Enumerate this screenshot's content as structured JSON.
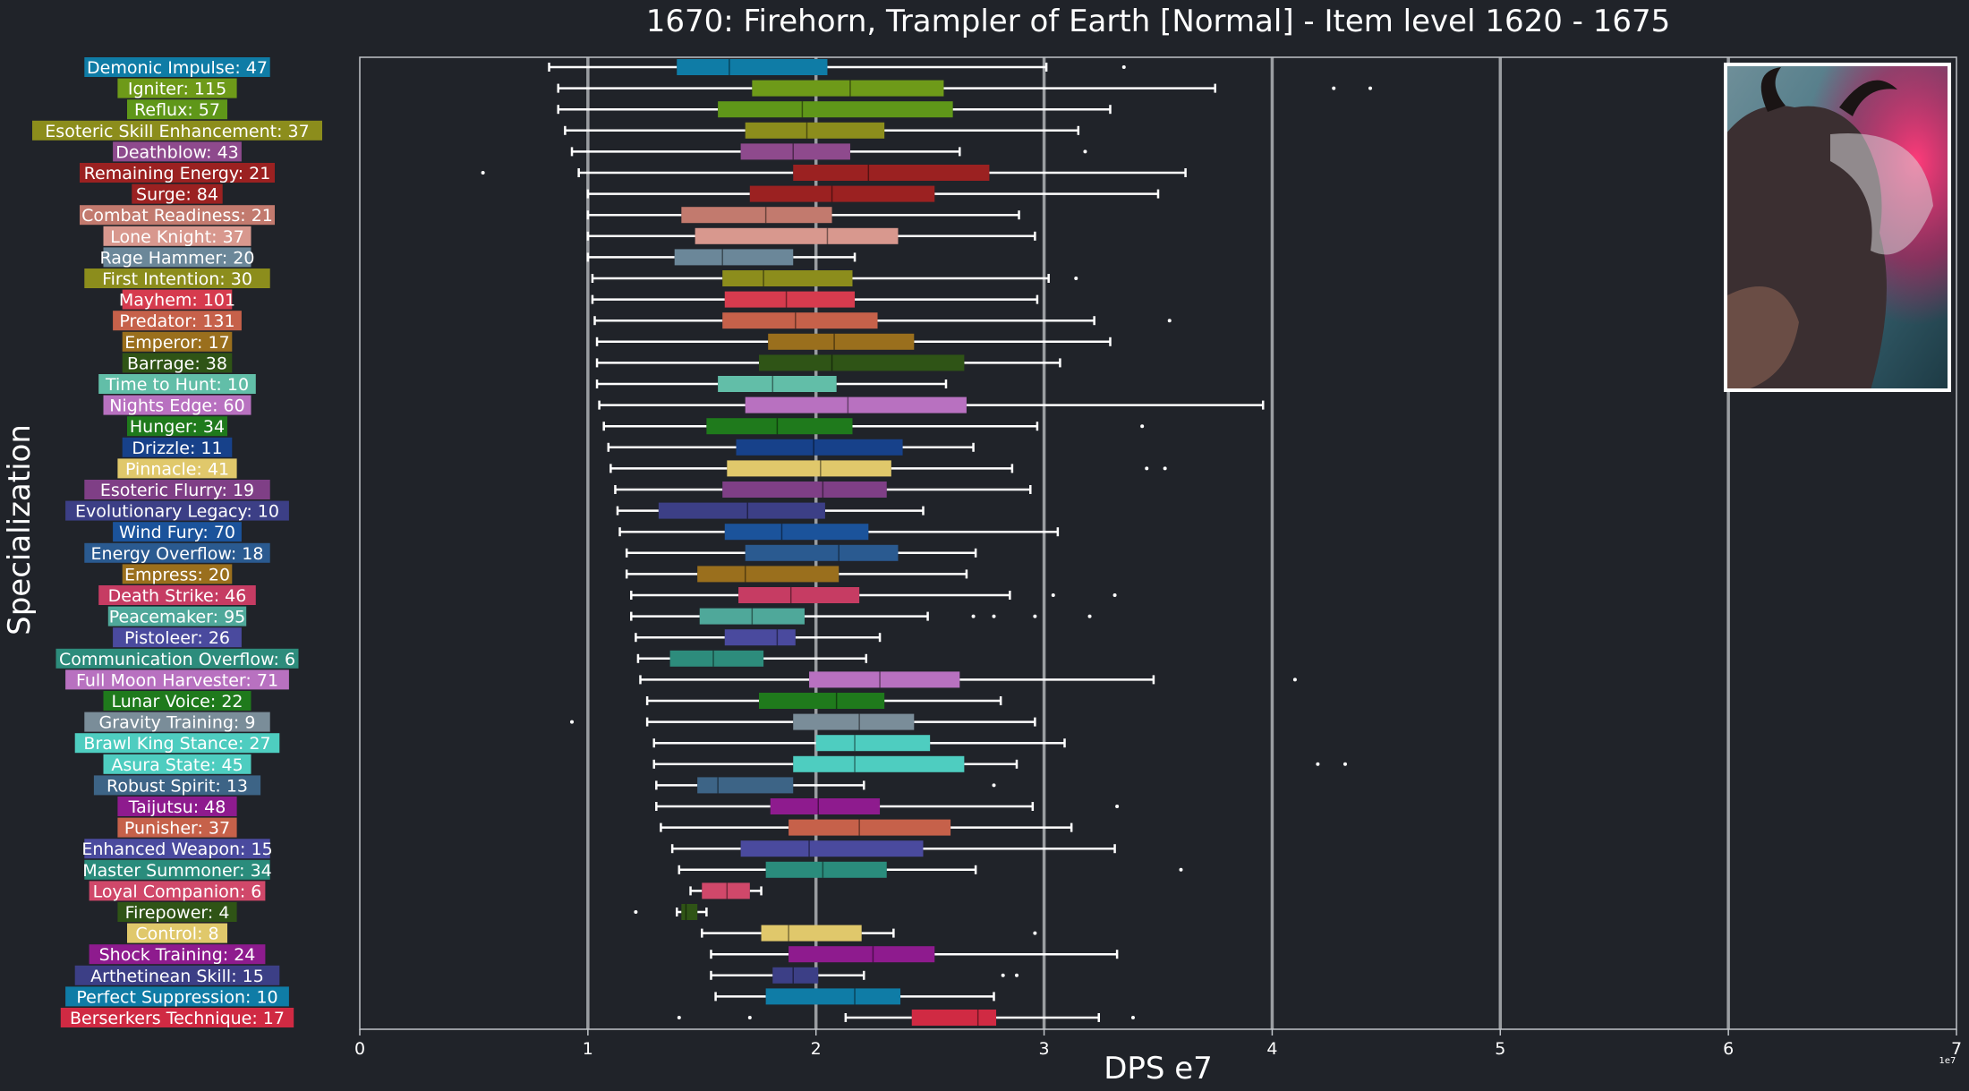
{
  "chart_data": {
    "type": "boxplot",
    "title": "1670: Firehorn, Trampler of Earth [Normal] - Item level 1620 - 1675",
    "xlabel": "DPS e7",
    "ylabel": "Specialization",
    "x_multiplier": "1e7",
    "xlim": [
      0,
      7
    ],
    "xticks": [
      "0",
      "1",
      "2",
      "3",
      "4",
      "5",
      "6",
      "7"
    ],
    "grid": "vertical major lines",
    "series": [
      {
        "label": "Demonic Impulse: 47",
        "color": "#0f7ca6",
        "whislo": 0.83,
        "q1": 1.39,
        "median": 1.62,
        "q3": 2.05,
        "whishi": 3.01,
        "fliers": [
          3.35
        ]
      },
      {
        "label": "Igniter: 115",
        "color": "#6e9a19",
        "whislo": 0.87,
        "q1": 1.72,
        "median": 2.15,
        "q3": 2.56,
        "whishi": 3.75,
        "fliers": [
          4.27,
          4.43
        ]
      },
      {
        "label": "Reflux: 57",
        "color": "#5f9719",
        "whislo": 0.87,
        "q1": 1.57,
        "median": 1.94,
        "q3": 2.6,
        "whishi": 3.29,
        "fliers": []
      },
      {
        "label": "Esoteric Skill Enhancement: 37",
        "color": "#8c8d1c",
        "whislo": 0.9,
        "q1": 1.69,
        "median": 1.96,
        "q3": 2.3,
        "whishi": 3.15,
        "fliers": []
      },
      {
        "label": "Deathblow: 43",
        "color": "#8e4a8d",
        "whislo": 0.93,
        "q1": 1.67,
        "median": 1.9,
        "q3": 2.15,
        "whishi": 2.63,
        "fliers": [
          3.18
        ]
      },
      {
        "label": "Remaining Energy: 21",
        "color": "#9b2121",
        "whislo": 0.96,
        "q1": 1.9,
        "median": 2.23,
        "q3": 2.76,
        "whishi": 3.62,
        "fliers": [
          0.54
        ]
      },
      {
        "label": "Surge: 84",
        "color": "#9b2121",
        "whislo": 1.0,
        "q1": 1.71,
        "median": 2.07,
        "q3": 2.52,
        "whishi": 3.5,
        "fliers": []
      },
      {
        "label": "Combat Readiness: 21",
        "color": "#c27a6e",
        "whislo": 1.0,
        "q1": 1.41,
        "median": 1.78,
        "q3": 2.07,
        "whishi": 2.89,
        "fliers": []
      },
      {
        "label": "Lone Knight: 37",
        "color": "#d8988e",
        "whislo": 1.0,
        "q1": 1.47,
        "median": 2.05,
        "q3": 2.36,
        "whishi": 2.96,
        "fliers": []
      },
      {
        "label": "Rage Hammer: 20",
        "color": "#6b8799",
        "whislo": 1.0,
        "q1": 1.38,
        "median": 1.59,
        "q3": 1.9,
        "whishi": 2.17,
        "fliers": []
      },
      {
        "label": "First Intention: 30",
        "color": "#8c8d1c",
        "whislo": 1.02,
        "q1": 1.59,
        "median": 1.77,
        "q3": 2.16,
        "whishi": 3.02,
        "fliers": [
          3.14
        ]
      },
      {
        "label": "Mayhem: 101",
        "color": "#d63b4e",
        "whislo": 1.02,
        "q1": 1.6,
        "median": 1.87,
        "q3": 2.17,
        "whishi": 2.97,
        "fliers": []
      },
      {
        "label": "Predator: 131",
        "color": "#c6614a",
        "whislo": 1.03,
        "q1": 1.59,
        "median": 1.91,
        "q3": 2.27,
        "whishi": 3.22,
        "fliers": [
          3.55
        ]
      },
      {
        "label": "Emperor: 17",
        "color": "#9a6f1d",
        "whislo": 1.04,
        "q1": 1.79,
        "median": 2.08,
        "q3": 2.43,
        "whishi": 3.29,
        "fliers": []
      },
      {
        "label": "Barrage: 38",
        "color": "#2f5416",
        "whislo": 1.04,
        "q1": 1.75,
        "median": 2.07,
        "q3": 2.65,
        "whishi": 3.07,
        "fliers": []
      },
      {
        "label": "Time to Hunt: 10",
        "color": "#62bea8",
        "whislo": 1.04,
        "q1": 1.57,
        "median": 1.81,
        "q3": 2.09,
        "whishi": 2.57,
        "fliers": []
      },
      {
        "label": "Nights Edge: 60",
        "color": "#b871c0",
        "whislo": 1.05,
        "q1": 1.69,
        "median": 2.14,
        "q3": 2.66,
        "whishi": 3.96,
        "fliers": []
      },
      {
        "label": "Hunger: 34",
        "color": "#1f7a1c",
        "whislo": 1.07,
        "q1": 1.52,
        "median": 1.83,
        "q3": 2.16,
        "whishi": 2.97,
        "fliers": [
          3.43
        ]
      },
      {
        "label": "Drizzle: 11",
        "color": "#17418a",
        "whislo": 1.09,
        "q1": 1.65,
        "median": 1.99,
        "q3": 2.38,
        "whishi": 2.69,
        "fliers": []
      },
      {
        "label": "Pinnacle: 41",
        "color": "#e0c86b",
        "whislo": 1.1,
        "q1": 1.61,
        "median": 2.02,
        "q3": 2.33,
        "whishi": 2.86,
        "fliers": [
          3.45,
          3.53
        ]
      },
      {
        "label": "Esoteric Flurry: 19",
        "color": "#7f3f86",
        "whislo": 1.12,
        "q1": 1.59,
        "median": 2.03,
        "q3": 2.31,
        "whishi": 2.94,
        "fliers": []
      },
      {
        "label": "Evolutionary Legacy: 10",
        "color": "#3c3f86",
        "whislo": 1.13,
        "q1": 1.31,
        "median": 1.7,
        "q3": 2.04,
        "whishi": 2.47,
        "fliers": []
      },
      {
        "label": "Wind Fury: 70",
        "color": "#1b539b",
        "whislo": 1.14,
        "q1": 1.6,
        "median": 1.85,
        "q3": 2.23,
        "whishi": 3.06,
        "fliers": []
      },
      {
        "label": "Energy Overflow: 18",
        "color": "#2a5a90",
        "whislo": 1.17,
        "q1": 1.69,
        "median": 2.1,
        "q3": 2.36,
        "whishi": 2.7,
        "fliers": []
      },
      {
        "label": "Empress: 20",
        "color": "#9a6f1d",
        "whislo": 1.17,
        "q1": 1.48,
        "median": 1.69,
        "q3": 2.1,
        "whishi": 2.66,
        "fliers": []
      },
      {
        "label": "Death Strike: 46",
        "color": "#c63c63",
        "whislo": 1.19,
        "q1": 1.66,
        "median": 1.89,
        "q3": 2.19,
        "whishi": 2.85,
        "fliers": [
          3.04,
          3.31
        ]
      },
      {
        "label": "Peacemaker: 95",
        "color": "#4fa89a",
        "whislo": 1.19,
        "q1": 1.49,
        "median": 1.72,
        "q3": 1.95,
        "whishi": 2.49,
        "fliers": [
          2.69,
          2.78,
          2.96,
          3.2
        ]
      },
      {
        "label": "Pistoleer: 26",
        "color": "#4a4a9e",
        "whislo": 1.21,
        "q1": 1.6,
        "median": 1.83,
        "q3": 1.91,
        "whishi": 2.28,
        "fliers": []
      },
      {
        "label": "Communication Overflow: 6",
        "color": "#2d8c7c",
        "whislo": 1.22,
        "q1": 1.36,
        "median": 1.55,
        "q3": 1.77,
        "whishi": 2.22,
        "fliers": []
      },
      {
        "label": "Full Moon Harvester: 71",
        "color": "#b871c0",
        "whislo": 1.23,
        "q1": 1.97,
        "median": 2.28,
        "q3": 2.63,
        "whishi": 3.48,
        "fliers": [
          4.1
        ]
      },
      {
        "label": "Lunar Voice: 22",
        "color": "#1f7a1c",
        "whislo": 1.26,
        "q1": 1.75,
        "median": 2.09,
        "q3": 2.3,
        "whishi": 2.81,
        "fliers": []
      },
      {
        "label": "Gravity Training: 9",
        "color": "#7a8d99",
        "whislo": 1.26,
        "q1": 1.9,
        "median": 2.19,
        "q3": 2.43,
        "whishi": 2.96,
        "fliers": [
          0.93
        ]
      },
      {
        "label": "Brawl King Stance: 27",
        "color": "#4ecdc0",
        "whislo": 1.29,
        "q1": 2.0,
        "median": 2.17,
        "q3": 2.5,
        "whishi": 3.09,
        "fliers": []
      },
      {
        "label": "Asura State: 45",
        "color": "#4ecdc0",
        "whislo": 1.29,
        "q1": 1.9,
        "median": 2.17,
        "q3": 2.65,
        "whishi": 2.88,
        "fliers": [
          4.2,
          4.32
        ]
      },
      {
        "label": "Robust Spirit: 13",
        "color": "#3d6486",
        "whislo": 1.3,
        "q1": 1.48,
        "median": 1.57,
        "q3": 1.9,
        "whishi": 2.21,
        "fliers": [
          2.78
        ]
      },
      {
        "label": "Taijutsu: 48",
        "color": "#8e1b8e",
        "whislo": 1.3,
        "q1": 1.8,
        "median": 2.01,
        "q3": 2.28,
        "whishi": 2.95,
        "fliers": [
          3.32
        ]
      },
      {
        "label": "Punisher: 37",
        "color": "#c6614a",
        "whislo": 1.32,
        "q1": 1.88,
        "median": 2.19,
        "q3": 2.59,
        "whishi": 3.12,
        "fliers": []
      },
      {
        "label": "Enhanced Weapon: 15",
        "color": "#4a4a9e",
        "whislo": 1.37,
        "q1": 1.67,
        "median": 1.97,
        "q3": 2.47,
        "whishi": 3.31,
        "fliers": []
      },
      {
        "label": "Master Summoner: 34",
        "color": "#2a8c7c",
        "whislo": 1.4,
        "q1": 1.78,
        "median": 2.03,
        "q3": 2.31,
        "whishi": 2.7,
        "fliers": [
          3.6
        ]
      },
      {
        "label": "Loyal Companion: 6",
        "color": "#d0486a",
        "whislo": 1.45,
        "q1": 1.5,
        "median": 1.61,
        "q3": 1.71,
        "whishi": 1.76,
        "fliers": []
      },
      {
        "label": "Firepower: 4",
        "color": "#2f5416",
        "whislo": 1.39,
        "q1": 1.41,
        "median": 1.43,
        "q3": 1.48,
        "whishi": 1.52,
        "fliers": [
          1.21
        ]
      },
      {
        "label": "Control: 8",
        "color": "#e0c86b",
        "whislo": 1.5,
        "q1": 1.76,
        "median": 1.88,
        "q3": 2.2,
        "whishi": 2.34,
        "fliers": [
          2.96
        ]
      },
      {
        "label": "Shock Training: 24",
        "color": "#8e1b8e",
        "whislo": 1.54,
        "q1": 1.88,
        "median": 2.25,
        "q3": 2.52,
        "whishi": 3.32,
        "fliers": []
      },
      {
        "label": "Arthetinean Skill: 15",
        "color": "#3c3f86",
        "whislo": 1.54,
        "q1": 1.81,
        "median": 1.9,
        "q3": 2.01,
        "whishi": 2.21,
        "fliers": [
          2.82,
          2.88
        ]
      },
      {
        "label": "Perfect Suppression: 10",
        "color": "#0f7ca6",
        "whislo": 1.56,
        "q1": 1.78,
        "median": 2.17,
        "q3": 2.37,
        "whishi": 2.78,
        "fliers": []
      },
      {
        "label": "Berserkers Technique: 17",
        "color": "#d02a43",
        "whislo": 2.13,
        "q1": 2.42,
        "median": 2.71,
        "q3": 2.79,
        "whishi": 3.24,
        "fliers": [
          1.4,
          1.71,
          3.39
        ]
      }
    ]
  },
  "colors": {
    "background": "#202329",
    "axes_edge": "#bfc3c8",
    "grid": "#9a9da1",
    "whisker": "#ffffff"
  },
  "portrait": {
    "description_icon": "firehorn-boss-portrait-image"
  }
}
